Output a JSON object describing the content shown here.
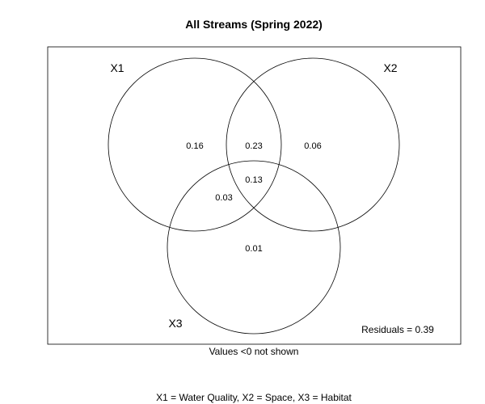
{
  "chart_data": {
    "type": "venn",
    "title": "All Streams (Spring 2022)",
    "sets": [
      {
        "id": "X1",
        "label": "X1"
      },
      {
        "id": "X2",
        "label": "X2"
      },
      {
        "id": "X3",
        "label": "X3"
      }
    ],
    "regions": {
      "x1_only": "0.16",
      "x1_x2": "0.23",
      "x2_only": "0.06",
      "x1_x2_x3": "0.13",
      "x1_x3": "0.03",
      "x3_only": "0.01"
    },
    "residuals_label": "Residuals = 0.39",
    "note": "Values <0 not shown",
    "legend": "X1 = Water Quality, X2 = Space, X3 = Habitat"
  }
}
